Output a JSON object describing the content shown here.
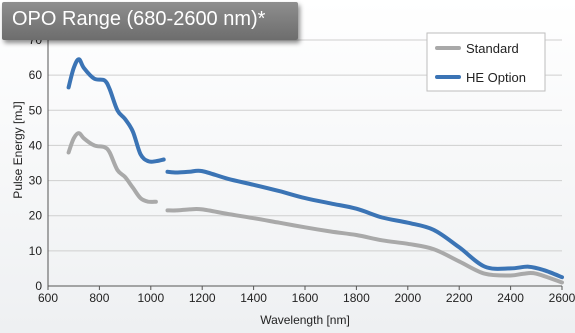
{
  "chart_data": {
    "type": "line",
    "title": "OPO Range (680-2600 nm)*",
    "xlabel": "Wavelength [nm]",
    "ylabel": "Pulse Energy [mJ]",
    "xlim": [
      600,
      2600
    ],
    "ylim": [
      0,
      70
    ],
    "xticks": [
      600,
      800,
      1000,
      1200,
      1400,
      1600,
      1800,
      2000,
      2200,
      2400,
      2600
    ],
    "yticks": [
      0,
      10,
      20,
      30,
      40,
      50,
      60,
      70
    ],
    "grid": "horizontal",
    "legend_position": "top-right",
    "colors": {
      "Standard": "#a9a9a9",
      "HE Option": "#3b74b5"
    },
    "series": [
      {
        "name": "Standard",
        "segments": [
          [
            [
              680,
              38
            ],
            [
              700,
              42
            ],
            [
              720,
              43.5
            ],
            [
              740,
              42
            ],
            [
              780,
              40
            ],
            [
              820,
              39.5
            ],
            [
              840,
              38
            ],
            [
              870,
              33
            ],
            [
              900,
              31
            ],
            [
              930,
              28
            ],
            [
              960,
              25
            ],
            [
              990,
              24
            ],
            [
              1020,
              24
            ]
          ],
          [
            [
              1065,
              21.5
            ],
            [
              1100,
              21.5
            ],
            [
              1150,
              21.8
            ],
            [
              1200,
              21.8
            ],
            [
              1300,
              20.5
            ],
            [
              1400,
              19.3
            ],
            [
              1500,
              18
            ],
            [
              1600,
              16.7
            ],
            [
              1700,
              15.5
            ],
            [
              1800,
              14.5
            ],
            [
              1900,
              13
            ],
            [
              2000,
              12
            ],
            [
              2100,
              10.5
            ],
            [
              2200,
              7
            ],
            [
              2300,
              3.5
            ],
            [
              2400,
              3
            ],
            [
              2450,
              3.5
            ],
            [
              2500,
              3.5
            ],
            [
              2600,
              1
            ]
          ]
        ]
      },
      {
        "name": "HE Option",
        "segments": [
          [
            [
              680,
              56.5
            ],
            [
              700,
              62
            ],
            [
              720,
              64.5
            ],
            [
              740,
              62
            ],
            [
              780,
              59
            ],
            [
              820,
              58.5
            ],
            [
              840,
              56
            ],
            [
              870,
              50
            ],
            [
              900,
              47.5
            ],
            [
              930,
              44
            ],
            [
              960,
              37.5
            ],
            [
              990,
              35.5
            ],
            [
              1020,
              35.5
            ],
            [
              1050,
              36
            ]
          ],
          [
            [
              1065,
              32.5
            ],
            [
              1100,
              32.3
            ],
            [
              1150,
              32.5
            ],
            [
              1200,
              32.7
            ],
            [
              1300,
              30.5
            ],
            [
              1400,
              28.8
            ],
            [
              1500,
              27
            ],
            [
              1600,
              25
            ],
            [
              1700,
              23.5
            ],
            [
              1800,
              22
            ],
            [
              1900,
              19.5
            ],
            [
              2000,
              18
            ],
            [
              2100,
              16
            ],
            [
              2200,
              11
            ],
            [
              2300,
              5.5
            ],
            [
              2400,
              5
            ],
            [
              2470,
              5.5
            ],
            [
              2530,
              4.5
            ],
            [
              2600,
              2.5
            ]
          ]
        ]
      }
    ]
  }
}
